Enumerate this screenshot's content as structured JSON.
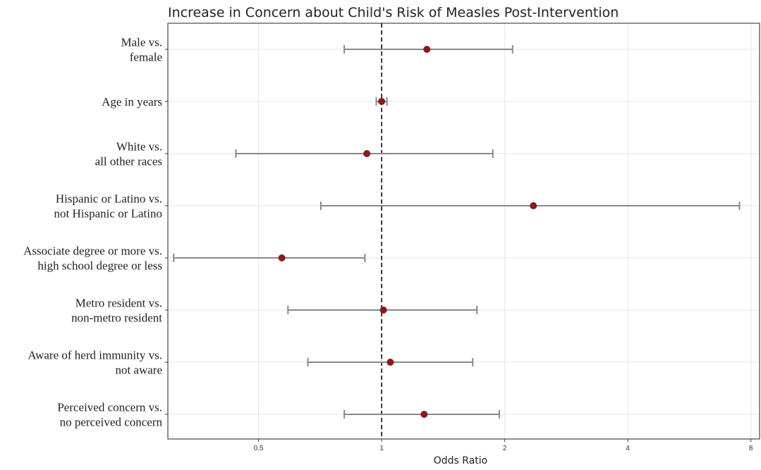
{
  "chart_data": {
    "type": "forest",
    "title": "Increase in Concern about Child's Risk of Measles Post-Intervention",
    "xlabel": "Odds Ratio",
    "x_scale": "log2",
    "xlim": [
      0.3,
      8.4
    ],
    "x_ticks": [
      0.5,
      1,
      2,
      4,
      8
    ],
    "reference_line": 1,
    "colors": {
      "point": "#8b1a1a",
      "whisker": "#888888",
      "reference": "#222222",
      "grid": "#e6e6e6"
    },
    "rows": [
      {
        "label_lines": [
          "Male vs.",
          "female"
        ],
        "or": 1.29,
        "lo": 0.81,
        "hi": 2.09
      },
      {
        "label_lines": [
          "Age in years"
        ],
        "or": 1.0,
        "lo": 0.97,
        "hi": 1.03
      },
      {
        "label_lines": [
          "White vs.",
          "all other races"
        ],
        "or": 0.92,
        "lo": 0.44,
        "hi": 1.87
      },
      {
        "label_lines": [
          "Hispanic or Latino vs.",
          "not Hispanic or Latino"
        ],
        "or": 2.35,
        "lo": 0.71,
        "hi": 7.5
      },
      {
        "label_lines": [
          "Associate degree or more vs.",
          "high school degree or less"
        ],
        "or": 0.57,
        "lo": 0.31,
        "hi": 0.91
      },
      {
        "label_lines": [
          "Metro resident vs.",
          "non-metro resident"
        ],
        "or": 1.01,
        "lo": 0.59,
        "hi": 1.71
      },
      {
        "label_lines": [
          "Aware of herd immunity vs.",
          "not aware"
        ],
        "or": 1.05,
        "lo": 0.66,
        "hi": 1.67
      },
      {
        "label_lines": [
          "Perceived concern vs.",
          "no perceived concern"
        ],
        "or": 1.27,
        "lo": 0.81,
        "hi": 1.94
      }
    ]
  }
}
